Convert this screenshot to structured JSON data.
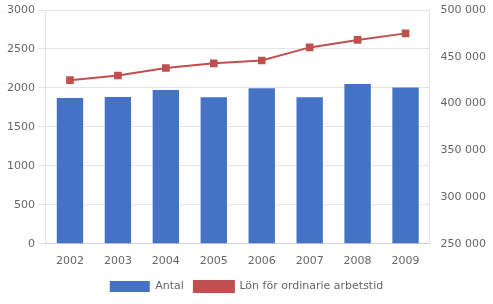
{
  "chart_data": {
    "type": "bar",
    "categories": [
      "2002",
      "2003",
      "2004",
      "2005",
      "2006",
      "2007",
      "2008",
      "2009"
    ],
    "series": [
      {
        "name": "Antal",
        "type": "bar",
        "color": "#4472C4",
        "values": [
          1870,
          1885,
          1975,
          1880,
          1995,
          1880,
          2050,
          2005
        ]
      },
      {
        "name": "Lön för ordinarie arbetstid",
        "type": "line",
        "color": "#C0504D",
        "marker": "square",
        "axis": "y2",
        "values": [
          425000,
          430000,
          438000,
          443000,
          446000,
          460000,
          468000,
          475000
        ]
      }
    ],
    "ylim": [
      0,
      3000
    ],
    "yticks": [
      0,
      500,
      1000,
      1500,
      2000,
      2500,
      3000
    ],
    "y2lim": [
      250000,
      500000
    ],
    "y2ticks": [
      {
        "value": 250000,
        "label": "250 000"
      },
      {
        "value": 300000,
        "label": "300 000"
      },
      {
        "value": 350000,
        "label": "350 000"
      },
      {
        "value": 400000,
        "label": "400 000"
      },
      {
        "value": 450000,
        "label": "450 000"
      },
      {
        "value": 500000,
        "label": "500 000"
      }
    ],
    "grid": true,
    "legend": "bottom"
  }
}
